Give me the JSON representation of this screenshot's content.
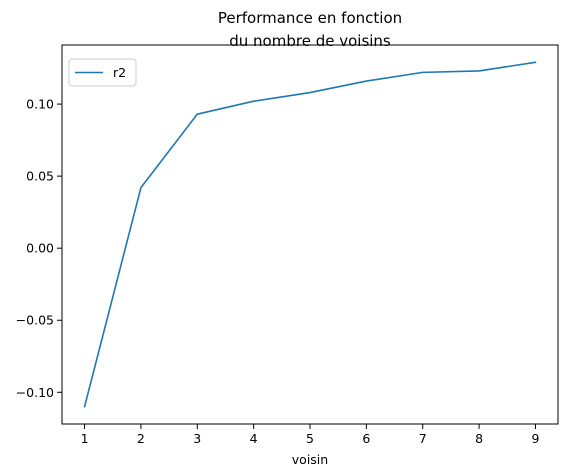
{
  "chart_data": {
    "type": "line",
    "title_lines": [
      "Performance en fonction",
      "du nombre de voisins"
    ],
    "xlabel": "voisin",
    "ylabel": "",
    "x": [
      1,
      2,
      3,
      4,
      5,
      6,
      7,
      8,
      9
    ],
    "series": [
      {
        "name": "r2",
        "color": "#1f77b4",
        "values": [
          -0.11,
          0.042,
          0.093,
          0.102,
          0.108,
          0.116,
          0.122,
          0.123,
          0.129
        ]
      }
    ],
    "xticks": [
      1,
      2,
      3,
      4,
      5,
      6,
      7,
      8,
      9
    ],
    "xtick_labels": [
      "1",
      "2",
      "3",
      "4",
      "5",
      "6",
      "7",
      "8",
      "9"
    ],
    "yticks": [
      -0.1,
      -0.05,
      0.0,
      0.05,
      0.1
    ],
    "ytick_labels": [
      "−0.10",
      "−0.05",
      "0.00",
      "0.05",
      "0.10"
    ],
    "xlim": [
      0.6,
      9.4
    ],
    "ylim": [
      -0.122,
      0.141
    ],
    "grid": false,
    "legend_position": "upper left"
  }
}
